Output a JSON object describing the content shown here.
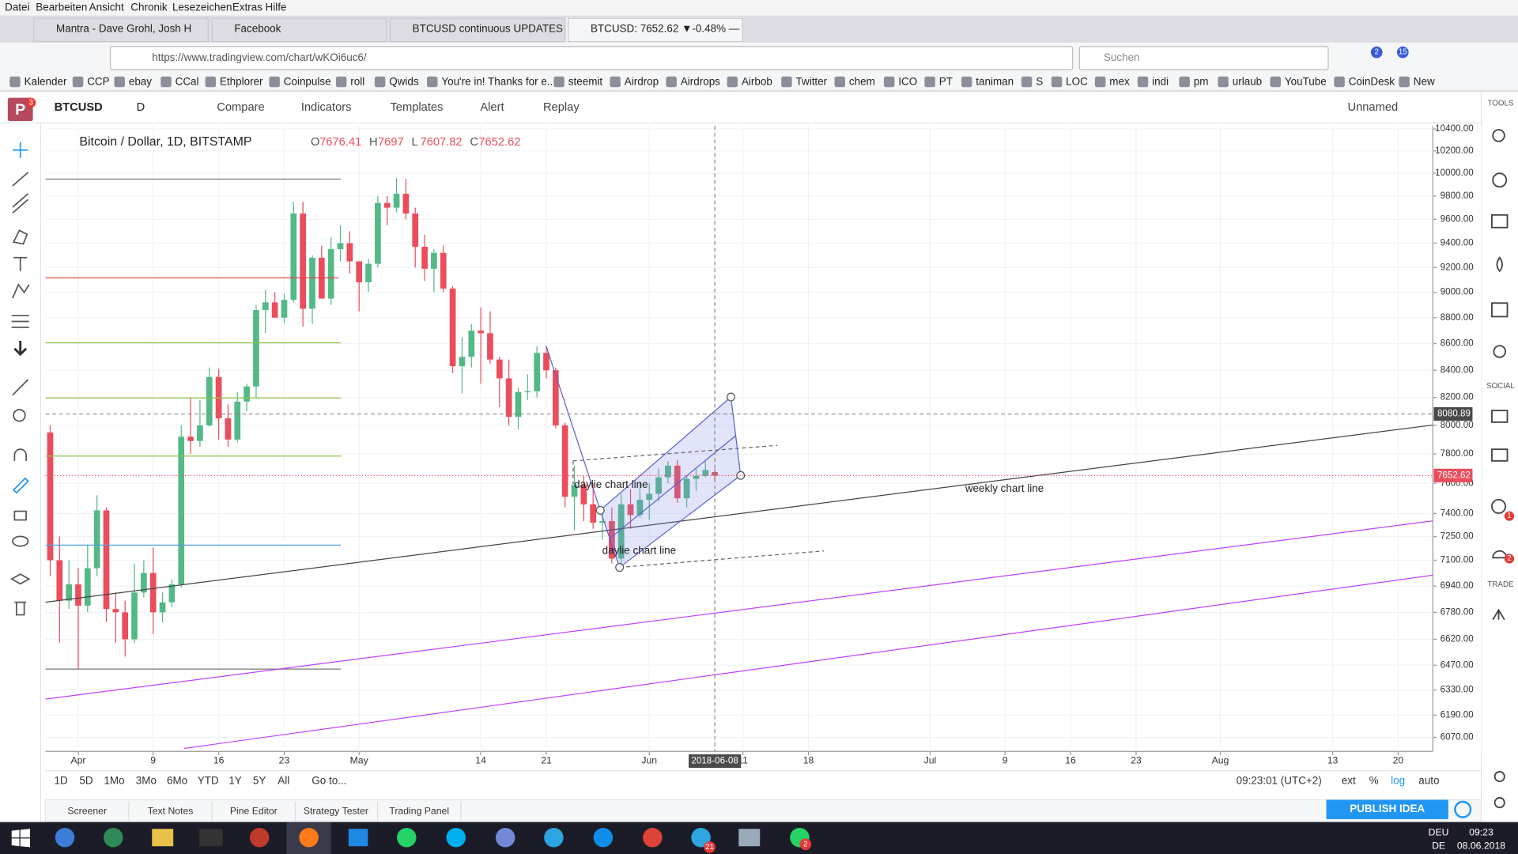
{
  "browser": {
    "menu": [
      "Datei",
      "Bearbeiten",
      "Ansicht",
      "Chronik",
      "Lesezeichen",
      "Extras",
      "Hilfe"
    ],
    "tabs": [
      "Mantra - Dave Grohl, Josh H",
      "Facebook",
      "BTCUSD continuous UPDATES",
      "BTCUSD: 7652.62 ▼-0.48% —"
    ],
    "url": "https://www.tradingview.com/chart/wKOi6uc6/",
    "search": "Suchen",
    "badges": [
      "2",
      "15"
    ],
    "bookmarks": [
      "Kalender",
      "CCP",
      "ebay",
      "CCal",
      "Ethplorer",
      "Coinpulse",
      "roll",
      "Qwids",
      "You're in! Thanks for e...",
      "steemit",
      "Airdrop",
      "Airdrops",
      "Airbob",
      "Twitter",
      "chem",
      "ICO",
      "PT",
      "taniman",
      "S",
      "LOC",
      "mex",
      "indi",
      "pm",
      "urlaub",
      "YouTube",
      "CoinDesk",
      "New"
    ]
  },
  "toolbar": {
    "logo_badge": "3",
    "symbol": "BTCUSD",
    "interval": "D",
    "items": [
      "Compare",
      "Indicators",
      "Templates",
      "Alert",
      "Replay"
    ],
    "layout": "Unnamed"
  },
  "sidebar": {
    "sections": [
      "TOOLS",
      "SOCIAL",
      "TRADE"
    ],
    "badges": [
      "1",
      "2"
    ]
  },
  "chart_data": {
    "type": "candlestick",
    "title": "Bitcoin / Dollar, 1D, BITSTAMP",
    "legend": [
      {
        "label": "O",
        "value": 7676.41
      },
      {
        "label": "H",
        "value": 7697.0
      },
      {
        "label": "L",
        "value": 7607.82
      },
      {
        "label": "C",
        "value": 7652.62
      }
    ],
    "up_color": "#53b987",
    "down_color": "#eb4d5c",
    "log_scale": true,
    "grid": true,
    "ylim": [
      6000,
      10500
    ],
    "yticks": [
      {
        "value": 10400,
        "label": "10400.00"
      },
      {
        "value": 10200,
        "label": "10200.00"
      },
      {
        "value": 10000,
        "label": "10000.00"
      },
      {
        "value": 9800,
        "label": "9800.00"
      },
      {
        "value": 9600,
        "label": "9600.00"
      },
      {
        "value": 9400,
        "label": "9400.00"
      },
      {
        "value": 9200,
        "label": "9200.00"
      },
      {
        "value": 9000,
        "label": "9000.00"
      },
      {
        "value": 8800,
        "label": "8800.00"
      },
      {
        "value": 8600,
        "label": "8600.00"
      },
      {
        "value": 8400,
        "label": "8400.00"
      },
      {
        "value": 8200,
        "label": "8200.00"
      },
      {
        "value": 8000,
        "label": "8000.00"
      },
      {
        "value": 7800,
        "label": "7800.00"
      },
      {
        "value": 7600,
        "label": "7600.00"
      },
      {
        "value": 7400,
        "label": "7400.00"
      },
      {
        "value": 7250,
        "label": "7250.00"
      },
      {
        "value": 7100,
        "label": "7100.00"
      },
      {
        "value": 6940,
        "label": "6940.00"
      },
      {
        "value": 6780,
        "label": "6780.00"
      },
      {
        "value": 6620,
        "label": "6620.00"
      },
      {
        "value": 6470,
        "label": "6470.00"
      },
      {
        "value": 6330,
        "label": "6330.00"
      },
      {
        "value": 6190,
        "label": "6190.00"
      },
      {
        "value": 6070,
        "label": "6070.00"
      }
    ],
    "xlim": [
      -0.5,
      147.7
    ],
    "xticks": [
      {
        "value": 3,
        "label": "Apr"
      },
      {
        "value": 11,
        "label": "9"
      },
      {
        "value": 18,
        "label": "16"
      },
      {
        "value": 25,
        "label": "23"
      },
      {
        "value": 33,
        "label": "May"
      },
      {
        "value": 46,
        "label": "14"
      },
      {
        "value": 53,
        "label": "21"
      },
      {
        "value": 64,
        "label": "Jun"
      },
      {
        "value": 74,
        "label": "11"
      },
      {
        "value": 81,
        "label": "18"
      },
      {
        "value": 94,
        "label": "Jul"
      },
      {
        "value": 102,
        "label": "9"
      },
      {
        "value": 109,
        "label": "16"
      },
      {
        "value": 116,
        "label": "23"
      },
      {
        "value": 125,
        "label": "Aug"
      },
      {
        "value": 137,
        "label": "13"
      },
      {
        "value": 144,
        "label": "20"
      }
    ],
    "candles": [
      [
        7950,
        8000,
        7000,
        7100
      ],
      [
        7100,
        7250,
        6600,
        6850
      ],
      [
        6850,
        7100,
        6800,
        6950
      ],
      [
        6950,
        7050,
        6450,
        6820
      ],
      [
        6820,
        7200,
        6780,
        7050
      ],
      [
        7050,
        7520,
        7000,
        7420
      ],
      [
        7420,
        7440,
        6720,
        6800
      ],
      [
        6800,
        6900,
        6600,
        6780
      ],
      [
        6780,
        6850,
        6520,
        6620
      ],
      [
        6620,
        7080,
        6600,
        6900
      ],
      [
        6900,
        7100,
        6870,
        7020
      ],
      [
        7020,
        7180,
        6650,
        6780
      ],
      [
        6780,
        6900,
        6720,
        6840
      ],
      [
        6840,
        6980,
        6810,
        6950
      ],
      [
        6950,
        8000,
        6930,
        7920
      ],
      [
        7920,
        8200,
        7800,
        7890
      ],
      [
        7890,
        8180,
        7850,
        8000
      ],
      [
        8000,
        8420,
        7990,
        8350
      ],
      [
        8350,
        8410,
        7900,
        8050
      ],
      [
        8050,
        8150,
        7850,
        7900
      ],
      [
        7900,
        8240,
        7880,
        8170
      ],
      [
        8170,
        8300,
        8100,
        8280
      ],
      [
        8280,
        8900,
        8200,
        8860
      ],
      [
        8860,
        9020,
        8680,
        8920
      ],
      [
        8920,
        9000,
        8800,
        8800
      ],
      [
        8800,
        8990,
        8760,
        8940
      ],
      [
        8940,
        9750,
        8920,
        9650
      ],
      [
        9650,
        9750,
        8730,
        8870
      ],
      [
        8870,
        9300,
        8750,
        9280
      ],
      [
        9280,
        9380,
        8950,
        8950
      ],
      [
        8950,
        9450,
        8900,
        9350
      ],
      [
        9350,
        9550,
        9250,
        9400
      ],
      [
        9400,
        9500,
        9150,
        9250
      ],
      [
        9250,
        9250,
        8850,
        9080
      ],
      [
        9080,
        9270,
        9000,
        9230
      ],
      [
        9230,
        9800,
        9200,
        9740
      ],
      [
        9740,
        9800,
        9550,
        9700
      ],
      [
        9700,
        9960,
        9660,
        9820
      ],
      [
        9820,
        9950,
        9600,
        9650
      ],
      [
        9650,
        9700,
        9200,
        9370
      ],
      [
        9370,
        9470,
        9090,
        9190
      ],
      [
        9190,
        9350,
        9000,
        9320
      ],
      [
        9320,
        9380,
        9000,
        9030
      ],
      [
        9030,
        9050,
        8380,
        8430
      ],
      [
        8430,
        8650,
        8230,
        8500
      ],
      [
        8500,
        8750,
        8420,
        8700
      ],
      [
        8700,
        8880,
        8300,
        8680
      ],
      [
        8680,
        8850,
        8450,
        8480
      ],
      [
        8480,
        8500,
        8130,
        8340
      ],
      [
        8340,
        8480,
        8000,
        8060
      ],
      [
        8060,
        8270,
        7970,
        8240
      ],
      [
        8240,
        8370,
        8180,
        8245
      ],
      [
        8245,
        8580,
        8200,
        8530
      ],
      [
        8530,
        8580,
        8340,
        8400
      ],
      [
        8400,
        8420,
        7980,
        8000
      ],
      [
        8000,
        8020,
        7440,
        7510
      ],
      [
        7510,
        7720,
        7290,
        7590
      ],
      [
        7590,
        7650,
        7350,
        7460
      ],
      [
        7460,
        7600,
        7300,
        7340
      ],
      [
        7340,
        7400,
        7230,
        7350
      ],
      [
        7350,
        7440,
        7080,
        7110
      ],
      [
        7110,
        7530,
        7060,
        7460
      ],
      [
        7460,
        7560,
        7300,
        7390
      ],
      [
        7390,
        7600,
        7370,
        7490
      ],
      [
        7490,
        7600,
        7360,
        7530
      ],
      [
        7530,
        7700,
        7480,
        7640
      ],
      [
        7640,
        7750,
        7600,
        7720
      ],
      [
        7720,
        7760,
        7470,
        7500
      ],
      [
        7500,
        7650,
        7440,
        7630
      ],
      [
        7630,
        7700,
        7550,
        7650
      ],
      [
        7650,
        7750,
        7640,
        7690
      ],
      [
        7676.41,
        7697.0,
        7607.82,
        7652.62
      ]
    ],
    "last_price": 7652.62,
    "crosshair": {
      "x": {
        "value": 71,
        "label": "2018-06-08"
      },
      "y": 8080.89
    },
    "annotations": [
      "daylie chart line",
      "daylie chart line",
      "weekly chart line"
    ]
  },
  "chart_footer": {
    "ranges": [
      "1D",
      "5D",
      "1Mo",
      "3Mo",
      "6Mo",
      "YTD",
      "1Y",
      "5Y",
      "All"
    ],
    "goto": "Go to...",
    "time": "09:23:01 (UTC+2)",
    "options": [
      "ext",
      "%",
      "log",
      "auto"
    ]
  },
  "bottom_tabs": [
    "Screener",
    "Text Notes",
    "Pine Editor",
    "Strategy Tester",
    "Trading Panel"
  ],
  "publish": "PUBLISH IDEA",
  "taskbar": {
    "badges": [
      "21",
      "2"
    ],
    "lang": "DEU",
    "layout": "DE",
    "time": "09:23",
    "date": "08.06.2018"
  }
}
